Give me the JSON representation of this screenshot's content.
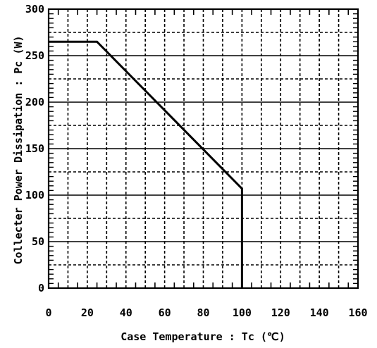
{
  "chart_data": {
    "type": "line",
    "title": "",
    "xlabel": "Case Temperature : Tc (℃)",
    "ylabel": "Collecter Power Dissipation : Pc (W)",
    "xlim": [
      0,
      160
    ],
    "ylim": [
      0,
      300
    ],
    "x_ticks": [
      0,
      20,
      40,
      60,
      80,
      100,
      120,
      140,
      160
    ],
    "y_ticks": [
      0,
      50,
      100,
      150,
      200,
      250,
      300
    ],
    "x_tick_labels": [
      "0",
      "20",
      "40",
      "60",
      "80",
      "100",
      "120",
      "140",
      "160"
    ],
    "y_tick_labels": [
      "0",
      "50",
      "100",
      "150",
      "200",
      "250",
      "300"
    ],
    "grid": {
      "major": "solid horizontal lines at y multiples of 50",
      "minor": "dashed lines every 10 units in x and every 25 units in y"
    },
    "legend": "none",
    "series": [
      {
        "x": [
          0,
          25,
          100,
          100
        ],
        "y": [
          265,
          265,
          107,
          0
        ],
        "color": "#000000"
      }
    ]
  }
}
